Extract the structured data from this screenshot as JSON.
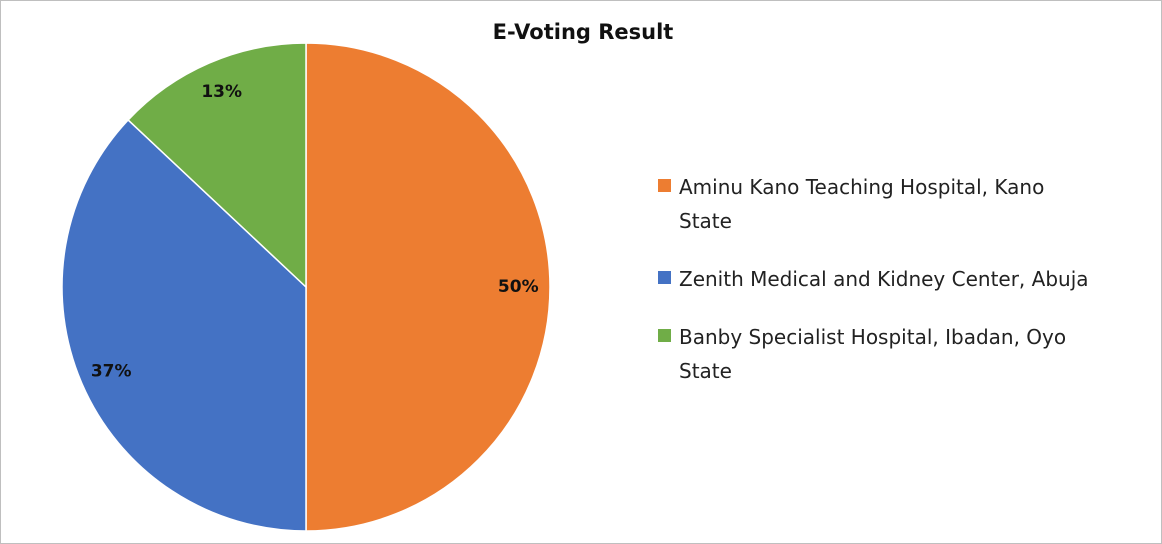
{
  "chart_data": {
    "type": "pie",
    "title": "E-Voting Result",
    "categories": [
      "Aminu Kano Teaching Hospital, Kano State",
      "Zenith Medical and Kidney Center, Abuja",
      "Banby Specialist Hospital, Ibadan, Oyo State"
    ],
    "values": [
      50,
      37,
      13
    ],
    "value_labels": [
      "50%",
      "37%",
      "13%"
    ],
    "colors": [
      "#ED7D31",
      "#4472C4",
      "#70AD47"
    ],
    "legend": "right"
  }
}
